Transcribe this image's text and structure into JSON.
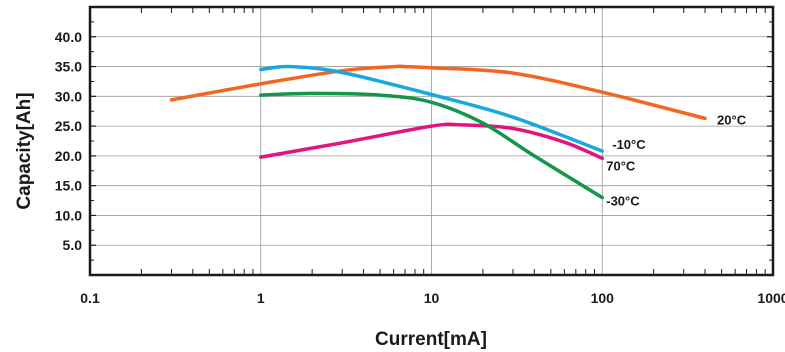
{
  "chart_data": {
    "type": "line",
    "xlabel": "Current[mA]",
    "ylabel": "Capacity[Ah]",
    "x_scale": "log",
    "xlim": [
      0.1,
      1000
    ],
    "ylim": [
      0,
      45
    ],
    "x_ticks": [
      {
        "value": 0.1,
        "label": "0.1"
      },
      {
        "value": 1,
        "label": "1"
      },
      {
        "value": 10,
        "label": "10"
      },
      {
        "value": 100,
        "label": "100"
      },
      {
        "value": 1000,
        "label": "1000"
      }
    ],
    "y_ticks": [
      {
        "value": 5,
        "label": "5.0"
      },
      {
        "value": 10,
        "label": "10.0"
      },
      {
        "value": 15,
        "label": "15.0"
      },
      {
        "value": 20,
        "label": "20.0"
      },
      {
        "value": 25,
        "label": "25.0"
      },
      {
        "value": 30,
        "label": "30.0"
      },
      {
        "value": 35,
        "label": "35.0"
      },
      {
        "value": 40,
        "label": "40.0"
      }
    ],
    "grid": true,
    "series": [
      {
        "name": "20°C",
        "color": "#f26522",
        "x": [
          0.3,
          1,
          3,
          6,
          7,
          10,
          30,
          100,
          400
        ],
        "y": [
          29.4,
          32.1,
          34.3,
          35,
          35,
          34.8,
          33.9,
          30.7,
          26.3
        ]
      },
      {
        "name": "-10°C",
        "color": "#1aa7e0",
        "x": [
          1,
          1.5,
          3,
          10,
          30,
          100
        ],
        "y": [
          34.5,
          35,
          34,
          30.3,
          26.5,
          20.8
        ]
      },
      {
        "name": "70°C",
        "color": "#e0157f",
        "x": [
          1,
          3,
          10,
          15,
          30,
          60,
          100
        ],
        "y": [
          19.8,
          22.2,
          25,
          25.2,
          24.6,
          22.3,
          19.6
        ]
      },
      {
        "name": "-30°C",
        "color": "#14954a",
        "x": [
          1,
          2,
          5,
          10,
          20,
          40,
          100
        ],
        "y": [
          30.2,
          30.5,
          30.2,
          29,
          25.5,
          20,
          13
        ]
      }
    ]
  }
}
